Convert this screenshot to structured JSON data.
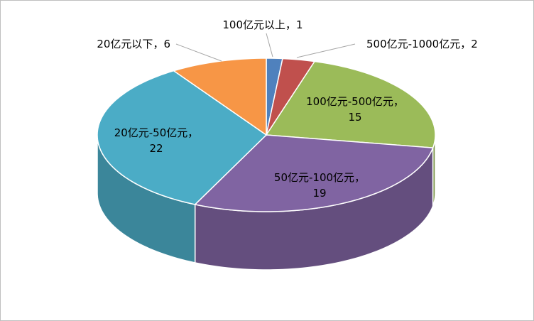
{
  "chart_data": {
    "type": "pie3d",
    "categories": [
      "100亿元以上",
      "500亿元-1000亿元",
      "100亿元-500亿元",
      "50亿元-100亿元",
      "20亿元-50亿元",
      "20亿元以下"
    ],
    "values": [
      1,
      2,
      15,
      19,
      22,
      6
    ],
    "colors": [
      "#4f81bd",
      "#c0504d",
      "#9bbb59",
      "#8064a2",
      "#4bacc6",
      "#f79646"
    ],
    "label_separator": "，"
  }
}
